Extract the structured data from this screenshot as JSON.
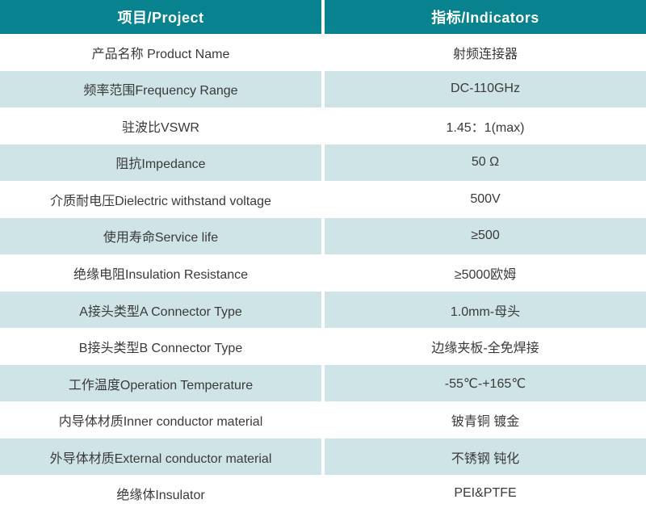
{
  "table": {
    "header": {
      "project_label": "项目/Project",
      "indicators_label": "指标/Indicators"
    },
    "rows": [
      {
        "project": "产品名称 Product Name",
        "indicator": "射频连接器"
      },
      {
        "project": "频率范围Frequency Range",
        "indicator": "DC-110GHz"
      },
      {
        "project": "驻波比VSWR",
        "indicator": "1.45：1(max)"
      },
      {
        "project": "阻抗Impedance",
        "indicator": "50 Ω"
      },
      {
        "project": "介质耐电压Dielectric withstand voltage",
        "indicator": "500V"
      },
      {
        "project": "使用寿命Service life",
        "indicator": "≥500"
      },
      {
        "project": "绝缘电阻Insulation Resistance",
        "indicator": "≥5000欧姆"
      },
      {
        "project": "A接头类型A Connector Type",
        "indicator": "1.0mm-母头"
      },
      {
        "project": "B接头类型B Connector Type",
        "indicator": "边缘夹板-全免焊接"
      },
      {
        "project": "工作温度Operation Temperature",
        "indicator": "-55℃-+165℃"
      },
      {
        "project": "内导体材质Inner conductor material",
        "indicator": "铍青铜 镀金"
      },
      {
        "project": "外导体材质External conductor material",
        "indicator": "不锈钢 钝化"
      },
      {
        "project": "绝缘体Insulator",
        "indicator": "PEI&PTFE"
      }
    ],
    "colors": {
      "header_bg": "#07828e",
      "header_text": "#ffffff",
      "alt_row_bg": "#cfe4e6",
      "body_text": "#3a3a3a",
      "divider": "#ffffff"
    }
  }
}
